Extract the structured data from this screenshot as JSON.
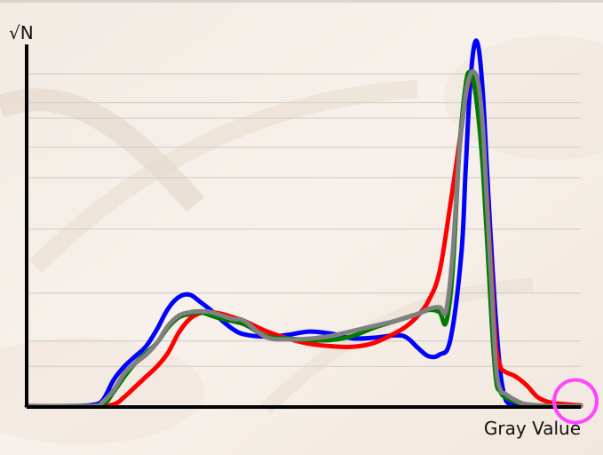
{
  "chart_data": {
    "type": "line",
    "title": "",
    "ylabel": "√N",
    "xlabel": "Gray Value",
    "xlim": [
      0,
      255
    ],
    "ylim": [
      0,
      100
    ],
    "grid": true,
    "gridlines_y": [
      12.0,
      19.5,
      33.7,
      52.6,
      67.8,
      76.8,
      85.4,
      90.0,
      98.5
    ],
    "legend": "none",
    "series": [
      {
        "name": "",
        "color": "#0000ff",
        "x": [
          0,
          20,
          30,
          35,
          40,
          45,
          50,
          55,
          60,
          65,
          70,
          75,
          80,
          85,
          90,
          95,
          100,
          110,
          120,
          130,
          140,
          150,
          160,
          170,
          175,
          180,
          185,
          190,
          195,
          200,
          202,
          204,
          206,
          208,
          210,
          212,
          214,
          216,
          218,
          220,
          222,
          225,
          230,
          240,
          255
        ],
        "y": [
          0.3,
          0.3,
          0.6,
          2.0,
          8.0,
          12.0,
          15.0,
          18.0,
          23.0,
          29.0,
          32.5,
          33.2,
          31.0,
          28.5,
          25.5,
          23.0,
          21.5,
          20.8,
          21.3,
          22.3,
          21.7,
          20.3,
          20.5,
          21.2,
          20.5,
          17.5,
          15.0,
          15.5,
          20.0,
          45.0,
          70.0,
          94.5,
          107.0,
          106.0,
          92.0,
          68.0,
          45.0,
          25.0,
          10.0,
          3.0,
          1.0,
          0.5,
          0.3,
          0.3,
          0.3
        ]
      },
      {
        "name": "",
        "color": "#ff0000",
        "x": [
          0,
          30,
          40,
          45,
          50,
          55,
          60,
          65,
          70,
          75,
          80,
          85,
          90,
          95,
          100,
          110,
          120,
          130,
          140,
          150,
          160,
          170,
          175,
          180,
          185,
          190,
          195,
          200,
          202,
          204,
          206,
          208,
          210,
          212,
          214,
          216,
          218,
          220,
          225,
          230,
          235,
          240,
          245,
          255
        ],
        "y": [
          0.3,
          0.3,
          0.8,
          3.0,
          6.0,
          9.0,
          12.0,
          16.0,
          22.0,
          26.0,
          27.8,
          28.0,
          27.5,
          26.5,
          25.5,
          22.5,
          20.3,
          18.7,
          18.0,
          17.8,
          19.0,
          22.0,
          24.0,
          27.0,
          31.5,
          40.0,
          60.0,
          82.0,
          92.0,
          97.0,
          96.5,
          92.0,
          80.0,
          60.0,
          38.0,
          18.0,
          12.0,
          10.5,
          9.0,
          6.5,
          3.0,
          1.5,
          1.0,
          0.5
        ]
      },
      {
        "name": "",
        "color": "#007a00",
        "x": [
          0,
          25,
          35,
          40,
          45,
          50,
          55,
          60,
          65,
          70,
          75,
          80,
          85,
          90,
          100,
          110,
          120,
          130,
          140,
          150,
          160,
          170,
          180,
          185,
          190,
          193,
          196,
          199,
          202,
          204,
          206,
          208,
          210,
          212,
          214,
          216,
          218,
          220,
          225,
          230,
          240,
          255
        ],
        "y": [
          0.3,
          0.3,
          0.8,
          4.5,
          9.0,
          13.0,
          16.0,
          19.0,
          23.5,
          26.5,
          27.5,
          28.0,
          27.0,
          26.0,
          24.5,
          21.0,
          20.3,
          19.8,
          19.8,
          21.0,
          23.5,
          25.5,
          27.5,
          28.7,
          28.0,
          25.0,
          40.0,
          75.0,
          95.0,
          99.0,
          95.0,
          85.0,
          70.0,
          48.0,
          25.0,
          8.0,
          4.5,
          3.0,
          1.5,
          0.8,
          0.3,
          0.3
        ]
      },
      {
        "name": "",
        "color": "#808080",
        "x": [
          0,
          30,
          35,
          40,
          45,
          50,
          55,
          60,
          65,
          70,
          75,
          80,
          85,
          90,
          95,
          100,
          110,
          120,
          130,
          140,
          150,
          160,
          170,
          180,
          185,
          190,
          193,
          196,
          199,
          202,
          204,
          206,
          208,
          210,
          212,
          214,
          216,
          218,
          220,
          225,
          230,
          240,
          255
        ],
        "y": [
          0.3,
          0.3,
          1.5,
          5.0,
          10.0,
          13.0,
          15.5,
          19.0,
          24.0,
          27.0,
          28.0,
          28.3,
          28.0,
          27.0,
          26.0,
          25.5,
          20.7,
          20.0,
          20.2,
          21.0,
          22.5,
          24.0,
          25.5,
          27.5,
          29.0,
          29.5,
          28.5,
          45.0,
          75.0,
          92.0,
          98.0,
          99.0,
          95.0,
          82.0,
          58.0,
          35.0,
          12.0,
          5.0,
          4.0,
          2.0,
          0.8,
          0.3,
          0.3
        ]
      }
    ],
    "annotations": [
      {
        "type": "circle-marker",
        "color": "#ff44ff",
        "x": 255,
        "y": 1.7
      }
    ]
  }
}
